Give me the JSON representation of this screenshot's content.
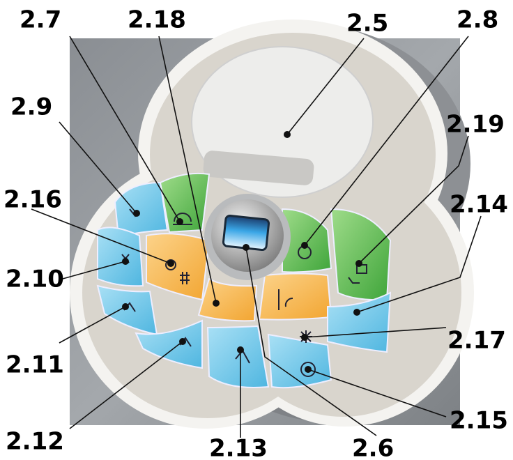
{
  "callouts": [
    "2.7",
    "2.18",
    "2.5",
    "2.8",
    "2.9",
    "2.19",
    "2.16",
    "2.14",
    "2.10",
    "2.17",
    "2.11",
    "2.15",
    "2.12",
    "2.13",
    "2.6"
  ]
}
